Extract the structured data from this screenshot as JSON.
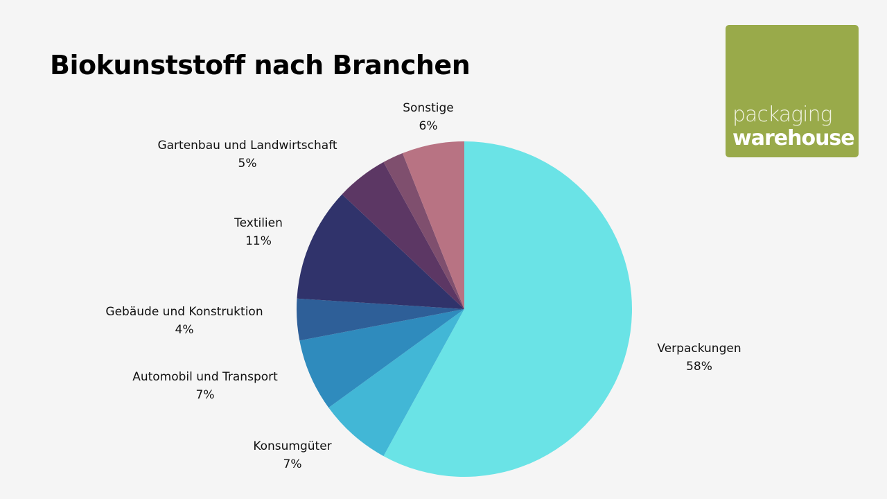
{
  "logo": {
    "line1": "packaging",
    "line2": "warehouse",
    "color": "#99aa4a"
  },
  "chart_data": {
    "type": "pie",
    "title": "Biokunststoff nach Branchen",
    "slices": [
      {
        "label": "Verpackungen",
        "value": 58,
        "display": "58%",
        "color": "#6ae3e6"
      },
      {
        "label": "Konsumgüter",
        "value": 7,
        "display": "7%",
        "color": "#42b7d6"
      },
      {
        "label": "Automobil und Transport",
        "value": 7,
        "display": "7%",
        "color": "#2f8bbd"
      },
      {
        "label": "Gebäude und Konstruktion",
        "value": 4,
        "display": "4%",
        "color": "#2e5f98"
      },
      {
        "label": "Textilien",
        "value": 11,
        "display": "11%",
        "color": "#30336b"
      },
      {
        "label": "Gartenbau und Landwirtschaft",
        "value": 5,
        "display": "5%",
        "color": "#5c3764"
      },
      {
        "label": "",
        "value": 2,
        "display": "",
        "color": "#7f4f6e"
      },
      {
        "label": "Sonstige",
        "value": 6,
        "display": "6%",
        "color": "#b87383"
      }
    ],
    "start": "top",
    "direction": "clockwise",
    "legend": "none"
  }
}
